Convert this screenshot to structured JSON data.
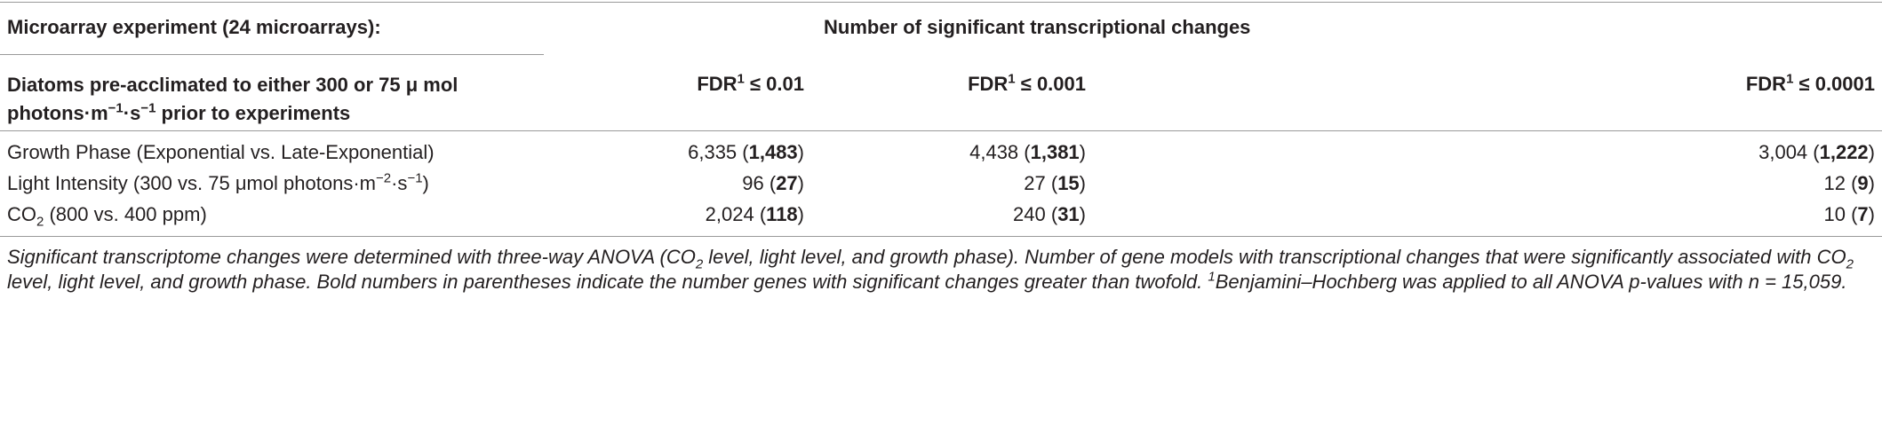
{
  "table": {
    "header": {
      "group_label": "Microarray experiment (24 microarrays):",
      "group_title": "Number of significant transcriptional changes",
      "row_header": [
        "Diatoms pre-acclimated to either 300 or 75 μ mol photons·m",
        "−1",
        "·s",
        "−1",
        " prior to experiments"
      ],
      "columns": [
        [
          "FDR",
          "1",
          " ≤ 0.01"
        ],
        [
          "FDR",
          "1",
          " ≤ 0.001"
        ],
        [
          "FDR",
          "1",
          " ≤ 0.0001"
        ]
      ]
    },
    "rows": [
      {
        "label": [
          "Growth Phase (Exponential vs. Late-Exponential)"
        ],
        "cells": [
          [
            "6,335 (",
            "1,483",
            ")"
          ],
          [
            "4,438 (",
            "1,381",
            ")"
          ],
          [
            "3,004 (",
            "1,222",
            ")"
          ]
        ]
      },
      {
        "label": [
          "Light Intensity (300 vs. 75 μmol photons·m",
          "−2",
          "·s",
          "−1",
          ")"
        ],
        "cells": [
          [
            "96 (",
            "27",
            ")"
          ],
          [
            "27 (",
            "15",
            ")"
          ],
          [
            "12 (",
            "9",
            ")"
          ]
        ]
      },
      {
        "label": [
          "CO",
          "2",
          " (800 vs. 400 ppm)"
        ],
        "cells": [
          [
            "2,024 (",
            "118",
            ")"
          ],
          [
            "240 (",
            "31",
            ")"
          ],
          [
            "10 (",
            "7",
            ")"
          ]
        ]
      }
    ],
    "footnote": [
      "Significant transcriptome changes were determined with three-way ANOVA (CO",
      "2",
      " level, light level, and growth phase). Number of gene models with transcriptional changes that were significantly associated with CO",
      "2",
      " level, light level, and growth phase. Bold numbers in parentheses indicate the number genes with significant changes greater than twofold. ",
      "1",
      "Benjamini–Hochberg was applied to all ANOVA p-values with n = 15,059."
    ]
  }
}
